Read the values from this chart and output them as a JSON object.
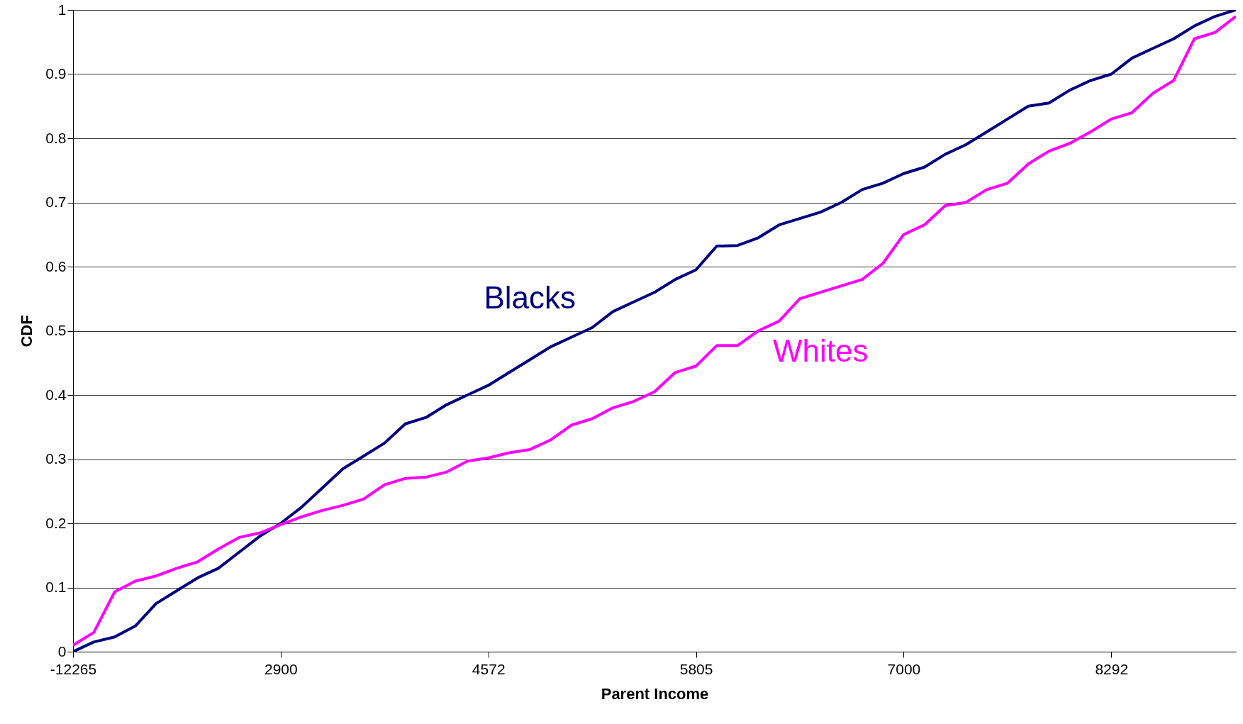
{
  "chart_data": {
    "type": "line",
    "xlabel": "Parent Income",
    "ylabel": "CDF",
    "categories": [
      "-12265",
      null,
      null,
      null,
      null,
      null,
      null,
      null,
      null,
      null,
      "2900",
      null,
      null,
      null,
      null,
      null,
      null,
      null,
      null,
      null,
      "4572",
      null,
      null,
      null,
      null,
      null,
      null,
      null,
      null,
      null,
      "5805",
      null,
      null,
      null,
      null,
      null,
      null,
      null,
      null,
      null,
      "7000",
      null,
      null,
      null,
      null,
      null,
      null,
      null,
      null,
      null,
      "8292",
      null,
      null,
      null,
      null,
      null,
      null
    ],
    "series": [
      {
        "name": "Blacks",
        "color": "#000080",
        "values": [
          0,
          0.015,
          0.023,
          0.04,
          0.075,
          0.095,
          0.115,
          0.13,
          0.155,
          0.18,
          0.2,
          0.225,
          0.255,
          0.285,
          0.305,
          0.325,
          0.355,
          0.365,
          0.385,
          0.4,
          0.415,
          0.435,
          0.455,
          0.475,
          0.49,
          0.505,
          0.53,
          0.545,
          0.56,
          0.58,
          0.595,
          0.632,
          0.633,
          0.645,
          0.665,
          0.675,
          0.685,
          0.7,
          0.72,
          0.73,
          0.745,
          0.755,
          0.775,
          0.79,
          0.81,
          0.83,
          0.85,
          0.855,
          0.875,
          0.89,
          0.9,
          0.925,
          0.94,
          0.955,
          0.975,
          0.99,
          1
        ]
      },
      {
        "name": "Whites",
        "color": "#ff00ff",
        "values": [
          0.01,
          0.03,
          0.093,
          0.11,
          0.118,
          0.13,
          0.14,
          0.16,
          0.178,
          0.185,
          0.198,
          0.21,
          0.22,
          0.228,
          0.238,
          0.26,
          0.27,
          0.272,
          0.28,
          0.297,
          0.302,
          0.31,
          0.315,
          0.33,
          0.353,
          0.363,
          0.38,
          0.39,
          0.405,
          0.435,
          0.445,
          0.477,
          0.477,
          0.5,
          0.515,
          0.55,
          0.56,
          0.57,
          0.58,
          0.605,
          0.65,
          0.665,
          0.695,
          0.7,
          0.72,
          0.73,
          0.76,
          0.78,
          0.792,
          0.81,
          0.83,
          0.84,
          0.87,
          0.89,
          0.955,
          0.965,
          0.99
        ]
      }
    ],
    "ylim": [
      0,
      1
    ],
    "yticks": [
      0,
      0.1,
      0.2,
      0.3,
      0.4,
      0.5,
      0.6,
      0.7,
      0.8,
      0.9,
      1
    ],
    "grid": "y"
  }
}
